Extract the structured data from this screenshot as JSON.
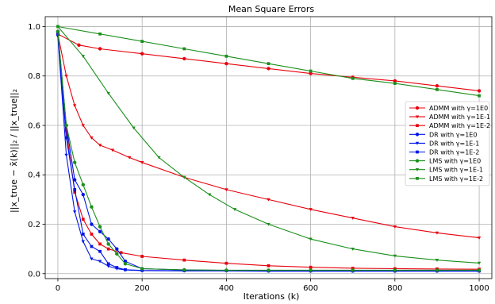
{
  "chart_data": {
    "type": "line",
    "title": "Mean Square Errors",
    "xlabel": "Iterations (k)",
    "ylabel": "||x_true − x̃(k)||₂ / ||x_true||₂",
    "xlim": [
      -30,
      1030
    ],
    "ylim": [
      -0.02,
      1.04
    ],
    "xticks": [
      0,
      200,
      400,
      600,
      800,
      1000
    ],
    "yticks": [
      0.0,
      0.2,
      0.4,
      0.6,
      0.8,
      1.0
    ],
    "grid": true,
    "legend_position": "right",
    "series": [
      {
        "name": "ADMM with γ=1E0",
        "color": "#e8000b",
        "marker": "circle",
        "x": [
          0,
          50,
          100,
          200,
          300,
          400,
          500,
          600,
          700,
          800,
          900,
          1000
        ],
        "y": [
          0.97,
          0.925,
          0.91,
          0.89,
          0.87,
          0.85,
          0.83,
          0.81,
          0.795,
          0.78,
          0.76,
          0.74
        ]
      },
      {
        "name": "ADMM with γ=1E-1",
        "color": "#e8000b",
        "marker": "triangle-down",
        "x": [
          0,
          20,
          40,
          60,
          80,
          100,
          130,
          170,
          200,
          300,
          400,
          500,
          600,
          700,
          800,
          900,
          1000
        ],
        "y": [
          0.97,
          0.8,
          0.68,
          0.6,
          0.55,
          0.52,
          0.5,
          0.47,
          0.45,
          0.39,
          0.34,
          0.3,
          0.26,
          0.225,
          0.19,
          0.165,
          0.145
        ]
      },
      {
        "name": "ADMM with γ=1E-2",
        "color": "#e8000b",
        "marker": "square",
        "x": [
          0,
          20,
          40,
          60,
          80,
          100,
          120,
          150,
          200,
          300,
          400,
          500,
          600,
          700,
          800,
          900,
          1000
        ],
        "y": [
          0.98,
          0.58,
          0.33,
          0.22,
          0.16,
          0.12,
          0.1,
          0.085,
          0.07,
          0.055,
          0.042,
          0.032,
          0.026,
          0.022,
          0.02,
          0.019,
          0.018
        ]
      },
      {
        "name": "DR with γ=1E0",
        "color": "#0015e8",
        "marker": "circle",
        "x": [
          0,
          20,
          40,
          60,
          80,
          100,
          120,
          140,
          160,
          200,
          300,
          400,
          500,
          600,
          700,
          800,
          900,
          1000
        ],
        "y": [
          0.98,
          0.6,
          0.38,
          0.32,
          0.2,
          0.17,
          0.14,
          0.1,
          0.05,
          0.02,
          0.015,
          0.013,
          0.012,
          0.012,
          0.011,
          0.011,
          0.011,
          0.011
        ]
      },
      {
        "name": "DR with γ=1E-1",
        "color": "#0015e8",
        "marker": "triangle-down",
        "x": [
          0,
          20,
          40,
          60,
          80,
          100,
          120,
          140,
          160,
          200,
          300,
          400,
          500,
          600,
          700,
          800,
          900,
          1000
        ],
        "y": [
          0.96,
          0.48,
          0.25,
          0.13,
          0.06,
          0.05,
          0.03,
          0.02,
          0.015,
          0.012,
          0.011,
          0.011,
          0.01,
          0.01,
          0.01,
          0.01,
          0.01,
          0.01
        ]
      },
      {
        "name": "DR with γ=1E-2",
        "color": "#0015e8",
        "marker": "square",
        "x": [
          0,
          20,
          40,
          60,
          80,
          100,
          120,
          140,
          160,
          200,
          300,
          400,
          500,
          600,
          700,
          800,
          900,
          1000
        ],
        "y": [
          0.97,
          0.55,
          0.34,
          0.16,
          0.11,
          0.09,
          0.04,
          0.025,
          0.016,
          0.013,
          0.012,
          0.012,
          0.011,
          0.011,
          0.011,
          0.011,
          0.011,
          0.011
        ]
      },
      {
        "name": "LMS with γ=1E0",
        "color": "#1a8f1a",
        "marker": "circle",
        "x": [
          0,
          20,
          40,
          60,
          80,
          100,
          120,
          140,
          160,
          200,
          300,
          400,
          500,
          600,
          700,
          800,
          900,
          1000
        ],
        "y": [
          0.98,
          0.6,
          0.45,
          0.36,
          0.27,
          0.19,
          0.12,
          0.08,
          0.04,
          0.02,
          0.015,
          0.014,
          0.014,
          0.014,
          0.014,
          0.014,
          0.014,
          0.014
        ]
      },
      {
        "name": "LMS with γ=1E-1",
        "color": "#1a8f1a",
        "marker": "triangle-down",
        "x": [
          0,
          60,
          120,
          180,
          240,
          300,
          360,
          420,
          500,
          600,
          700,
          800,
          900,
          1000
        ],
        "y": [
          1.0,
          0.88,
          0.73,
          0.59,
          0.47,
          0.39,
          0.32,
          0.26,
          0.2,
          0.14,
          0.1,
          0.072,
          0.055,
          0.043
        ]
      },
      {
        "name": "LMS with γ=1E-2",
        "color": "#1a8f1a",
        "marker": "square",
        "x": [
          0,
          100,
          200,
          300,
          400,
          500,
          600,
          700,
          800,
          900,
          1000
        ],
        "y": [
          1.0,
          0.97,
          0.94,
          0.91,
          0.88,
          0.85,
          0.82,
          0.79,
          0.77,
          0.745,
          0.72
        ]
      }
    ]
  }
}
